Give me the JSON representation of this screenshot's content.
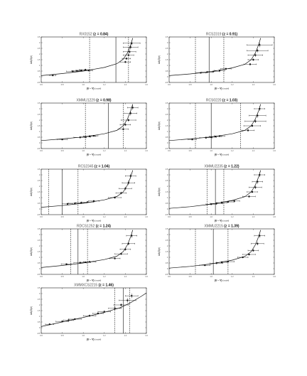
{
  "figure": {
    "ylabel": "ΔA(Gyr)",
    "xlabel_main": "(U − V)",
    "xlabel_sub": "(model)",
    "xticks": [
      "0.6",
      "0.8",
      "1.0",
      "1.2",
      "1.4",
      "1.6"
    ],
    "xlim": [
      0.6,
      1.6
    ]
  },
  "chart_data": [
    {
      "type": "scatter",
      "name": "RX0152",
      "z_label": "(z = 0.84)",
      "xlim": [
        0.6,
        1.6
      ],
      "ylim": [
        -0.5,
        3.5
      ],
      "yticks": [
        -0.5,
        0,
        0.5,
        1,
        1.5,
        2,
        2.5,
        3,
        3.5
      ],
      "vlines": {
        "solid": 1.31,
        "dashed": [
          1.06,
          1.43
        ]
      },
      "points": [
        {
          "x": 0.71,
          "y": 0.12,
          "ex": 0.03,
          "ey": 0.04
        },
        {
          "x": 0.9,
          "y": 0.48,
          "ex": 0.06,
          "ey": 0.06
        },
        {
          "x": 0.94,
          "y": 0.52,
          "ex": 0.05,
          "ey": 0.05
        },
        {
          "x": 0.98,
          "y": 0.56,
          "ex": 0.05,
          "ey": 0.06
        },
        {
          "x": 1.02,
          "y": 0.62,
          "ex": 0.06,
          "ey": 0.08
        },
        {
          "x": 1.05,
          "y": 0.55,
          "ex": 0.04,
          "ey": 0.05
        },
        {
          "x": 1.4,
          "y": 1.3,
          "ex": 0.05,
          "ey": 0.1
        },
        {
          "x": 1.41,
          "y": 1.6,
          "ex": 0.04,
          "ey": 0.1
        },
        {
          "x": 1.43,
          "y": 1.9,
          "ex": 0.05,
          "ey": 0.1
        },
        {
          "x": 1.44,
          "y": 2.2,
          "ex": 0.06,
          "ey": 0.15
        },
        {
          "x": 1.45,
          "y": 2.6,
          "ex": 0.07,
          "ey": 0.2
        },
        {
          "x": 1.46,
          "y": 2.95,
          "ex": 0.08,
          "ey": 0.2
        }
      ],
      "curve": [
        [
          0.6,
          0.1
        ],
        [
          0.8,
          0.28
        ],
        [
          1.0,
          0.5
        ],
        [
          1.2,
          0.82
        ],
        [
          1.32,
          1.15
        ],
        [
          1.38,
          1.55
        ],
        [
          1.42,
          2.1
        ],
        [
          1.45,
          2.8
        ],
        [
          1.47,
          3.4
        ]
      ]
    },
    {
      "type": "scatter",
      "name": "RCS2319",
      "z_label": "(z = 0.91)",
      "xlim": [
        0.6,
        1.6
      ],
      "ylim": [
        -0.5,
        3.5
      ],
      "yticks": [
        -0.5,
        0,
        0.5,
        1,
        1.5,
        2,
        2.5,
        3,
        3.5
      ],
      "vlines": {
        "solid": 0.98,
        "dashed": [
          0.85,
          1.12
        ]
      },
      "points": [
        {
          "x": 0.9,
          "y": 0.35,
          "ex": 0.05,
          "ey": 0.05
        },
        {
          "x": 0.96,
          "y": 0.4,
          "ex": 0.05,
          "ey": 0.06
        },
        {
          "x": 1.02,
          "y": 0.46,
          "ex": 0.06,
          "ey": 0.07
        },
        {
          "x": 1.08,
          "y": 0.55,
          "ex": 0.05,
          "ey": 0.06
        },
        {
          "x": 1.14,
          "y": 0.7,
          "ex": 0.05,
          "ey": 0.08
        },
        {
          "x": 1.37,
          "y": 1.1,
          "ex": 0.06,
          "ey": 0.1
        },
        {
          "x": 1.4,
          "y": 1.5,
          "ex": 0.05,
          "ey": 0.12
        },
        {
          "x": 1.42,
          "y": 1.9,
          "ex": 0.07,
          "ey": 0.15
        },
        {
          "x": 1.44,
          "y": 2.3,
          "ex": 0.1,
          "ey": 0.15
        },
        {
          "x": 1.46,
          "y": 2.8,
          "ex": 0.12,
          "ey": 0.2
        }
      ],
      "curve": [
        [
          0.6,
          0.1
        ],
        [
          0.8,
          0.25
        ],
        [
          1.0,
          0.45
        ],
        [
          1.2,
          0.78
        ],
        [
          1.32,
          1.1
        ],
        [
          1.38,
          1.5
        ],
        [
          1.42,
          2.1
        ],
        [
          1.45,
          2.8
        ],
        [
          1.47,
          3.4
        ]
      ]
    },
    {
      "type": "scatter",
      "name": "XMMU1229",
      "z_label": "(z = 0.98)",
      "xlim": [
        0.6,
        1.6
      ],
      "ylim": [
        -0.5,
        3.5
      ],
      "yticks": [
        -0.5,
        0,
        0.5,
        1,
        1.5,
        2,
        2.5,
        3,
        3.5
      ],
      "vlines": {
        "solid": 1.24,
        "dashed": [
          1.02,
          1.38
        ]
      },
      "points": [
        {
          "x": 0.8,
          "y": 0.3,
          "ex": 0.05,
          "ey": 0.05
        },
        {
          "x": 0.97,
          "y": 0.48,
          "ex": 0.06,
          "ey": 0.06
        },
        {
          "x": 1.02,
          "y": 0.52,
          "ex": 0.05,
          "ey": 0.06
        },
        {
          "x": 1.06,
          "y": 0.58,
          "ex": 0.06,
          "ey": 0.07
        },
        {
          "x": 1.1,
          "y": 0.62,
          "ex": 0.04,
          "ey": 0.05
        },
        {
          "x": 1.38,
          "y": 1.2,
          "ex": 0.05,
          "ey": 0.1
        },
        {
          "x": 1.4,
          "y": 1.6,
          "ex": 0.05,
          "ey": 0.12
        },
        {
          "x": 1.43,
          "y": 2.0,
          "ex": 0.07,
          "ey": 0.15
        },
        {
          "x": 1.45,
          "y": 2.6,
          "ex": 0.06,
          "ey": 0.2
        },
        {
          "x": 1.47,
          "y": 3.1,
          "ex": 0.05,
          "ey": 0.2
        }
      ],
      "curve": [
        [
          0.6,
          0.2
        ],
        [
          0.8,
          0.35
        ],
        [
          1.0,
          0.52
        ],
        [
          1.2,
          0.8
        ],
        [
          1.32,
          1.1
        ],
        [
          1.38,
          1.5
        ],
        [
          1.42,
          2.1
        ],
        [
          1.45,
          2.8
        ],
        [
          1.47,
          3.4
        ]
      ]
    },
    {
      "type": "scatter",
      "name": "RCS0220",
      "z_label": "(z = 1.03)",
      "xlim": [
        0.6,
        1.6
      ],
      "ylim": [
        -0.5,
        3.5
      ],
      "yticks": [
        -0.5,
        0,
        0.5,
        1,
        1.5,
        2,
        2.5,
        3,
        3.5
      ],
      "vlines": {
        "solid": 1.0,
        "dashed": [
          0.85,
          1.28
        ]
      },
      "points": [
        {
          "x": 0.82,
          "y": 0.3,
          "ex": 0.04,
          "ey": 0.05
        },
        {
          "x": 0.95,
          "y": 0.45,
          "ex": 0.06,
          "ey": 0.06
        },
        {
          "x": 1.0,
          "y": 0.5,
          "ex": 0.05,
          "ey": 0.06
        },
        {
          "x": 1.04,
          "y": 0.56,
          "ex": 0.06,
          "ey": 0.07
        },
        {
          "x": 1.08,
          "y": 0.6,
          "ex": 0.05,
          "ey": 0.06
        },
        {
          "x": 1.35,
          "y": 1.1,
          "ex": 0.06,
          "ey": 0.1
        },
        {
          "x": 1.39,
          "y": 1.5,
          "ex": 0.08,
          "ey": 0.12
        },
        {
          "x": 1.42,
          "y": 1.9,
          "ex": 0.1,
          "ey": 0.15
        },
        {
          "x": 1.44,
          "y": 2.4,
          "ex": 0.08,
          "ey": 0.2
        },
        {
          "x": 1.46,
          "y": 3.0,
          "ex": 0.05,
          "ey": 0.2
        }
      ],
      "curve": [
        [
          0.6,
          0.2
        ],
        [
          0.8,
          0.35
        ],
        [
          1.0,
          0.52
        ],
        [
          1.2,
          0.8
        ],
        [
          1.32,
          1.1
        ],
        [
          1.38,
          1.5
        ],
        [
          1.42,
          2.1
        ],
        [
          1.45,
          2.8
        ],
        [
          1.47,
          3.4
        ]
      ]
    },
    {
      "type": "scatter",
      "name": "RCS2345",
      "z_label": "(z = 1.04)",
      "xlim": [
        0.6,
        1.6
      ],
      "ylim": [
        -0.5,
        3.5
      ],
      "yticks": [
        -0.5,
        0,
        0.5,
        1,
        1.5,
        2,
        2.5,
        3,
        3.5
      ],
      "vlines": {
        "solid": 0.8,
        "dashed": [
          0.67,
          0.95
        ]
      },
      "points": [
        {
          "x": 0.85,
          "y": 0.45,
          "ex": 0.05,
          "ey": 0.06
        },
        {
          "x": 0.92,
          "y": 0.5,
          "ex": 0.06,
          "ey": 0.06
        },
        {
          "x": 0.98,
          "y": 0.55,
          "ex": 0.05,
          "ey": 0.06
        },
        {
          "x": 1.04,
          "y": 0.6,
          "ex": 0.06,
          "ey": 0.07
        },
        {
          "x": 1.1,
          "y": 0.7,
          "ex": 0.05,
          "ey": 0.06
        },
        {
          "x": 1.3,
          "y": 1.0,
          "ex": 0.06,
          "ey": 0.1
        },
        {
          "x": 1.36,
          "y": 1.4,
          "ex": 0.05,
          "ey": 0.12
        },
        {
          "x": 1.4,
          "y": 1.8,
          "ex": 0.06,
          "ey": 0.15
        },
        {
          "x": 1.43,
          "y": 2.3,
          "ex": 0.06,
          "ey": 0.2
        },
        {
          "x": 1.45,
          "y": 2.9,
          "ex": 0.05,
          "ey": 0.2
        }
      ],
      "curve": [
        [
          0.6,
          0.15
        ],
        [
          0.8,
          0.3
        ],
        [
          1.0,
          0.5
        ],
        [
          1.2,
          0.8
        ],
        [
          1.32,
          1.1
        ],
        [
          1.38,
          1.5
        ],
        [
          1.42,
          2.1
        ],
        [
          1.45,
          2.8
        ],
        [
          1.47,
          3.4
        ]
      ]
    },
    {
      "type": "scatter",
      "name": "XMMU2235",
      "z_label": "(z = 1.22)",
      "xlim": [
        0.6,
        1.6
      ],
      "ylim": [
        -0.5,
        3.5
      ],
      "yticks": [
        -0.5,
        0,
        0.5,
        1,
        1.5,
        2,
        2.5,
        3,
        3.5
      ],
      "vlines": {
        "solid": 1.04,
        "dashed": [
          0.96,
          1.12
        ]
      },
      "points": [
        {
          "x": 1.0,
          "y": 0.42,
          "ex": 0.05,
          "ey": 0.06
        },
        {
          "x": 1.05,
          "y": 0.48,
          "ex": 0.06,
          "ey": 0.06
        },
        {
          "x": 1.1,
          "y": 0.55,
          "ex": 0.05,
          "ey": 0.06
        },
        {
          "x": 1.16,
          "y": 0.62,
          "ex": 0.06,
          "ey": 0.07
        },
        {
          "x": 1.22,
          "y": 0.7,
          "ex": 0.05,
          "ey": 0.06
        },
        {
          "x": 1.36,
          "y": 1.1,
          "ex": 0.06,
          "ey": 0.1
        },
        {
          "x": 1.39,
          "y": 1.5,
          "ex": 0.05,
          "ey": 0.12
        },
        {
          "x": 1.42,
          "y": 1.9,
          "ex": 0.06,
          "ey": 0.15
        },
        {
          "x": 1.44,
          "y": 2.4,
          "ex": 0.05,
          "ey": 0.2
        },
        {
          "x": 1.46,
          "y": 3.0,
          "ex": 0.05,
          "ey": 0.2
        }
      ],
      "curve": [
        [
          0.6,
          0.05
        ],
        [
          0.8,
          0.2
        ],
        [
          1.0,
          0.42
        ],
        [
          1.2,
          0.75
        ],
        [
          1.32,
          1.08
        ],
        [
          1.38,
          1.5
        ],
        [
          1.42,
          2.1
        ],
        [
          1.45,
          2.8
        ],
        [
          1.47,
          3.4
        ]
      ]
    },
    {
      "type": "scatter",
      "name": "RDCS1252",
      "z_label": "(z = 1.24)",
      "xlim": [
        0.6,
        1.6
      ],
      "ylim": [
        -0.5,
        3.5
      ],
      "yticks": [
        -0.5,
        0,
        0.5,
        1,
        1.5,
        2,
        2.5,
        3,
        3.5
      ],
      "vlines": {
        "solid": 0.95,
        "dashed": [
          0.88,
          1.04
        ]
      },
      "points": [
        {
          "x": 0.84,
          "y": 0.4,
          "ex": 0.05,
          "ey": 0.05
        },
        {
          "x": 0.97,
          "y": 0.52,
          "ex": 0.06,
          "ey": 0.06
        },
        {
          "x": 1.02,
          "y": 0.56,
          "ex": 0.05,
          "ey": 0.06
        },
        {
          "x": 1.06,
          "y": 0.6,
          "ex": 0.06,
          "ey": 0.07
        },
        {
          "x": 1.3,
          "y": 0.9,
          "ex": 0.05,
          "ey": 0.08
        },
        {
          "x": 1.36,
          "y": 1.3,
          "ex": 0.06,
          "ey": 0.1
        },
        {
          "x": 1.4,
          "y": 1.7,
          "ex": 0.05,
          "ey": 0.12
        },
        {
          "x": 1.43,
          "y": 2.2,
          "ex": 0.06,
          "ey": 0.15
        },
        {
          "x": 1.46,
          "y": 2.9,
          "ex": 0.05,
          "ey": 0.2
        }
      ],
      "curve": [
        [
          0.6,
          0.1
        ],
        [
          0.8,
          0.28
        ],
        [
          1.0,
          0.5
        ],
        [
          1.2,
          0.8
        ],
        [
          1.32,
          1.1
        ],
        [
          1.38,
          1.5
        ],
        [
          1.42,
          2.1
        ],
        [
          1.45,
          2.8
        ],
        [
          1.47,
          3.4
        ]
      ]
    },
    {
      "type": "scatter",
      "name": "XMMU2215",
      "z_label": "(z = 1.39)",
      "xlim": [
        0.6,
        1.6
      ],
      "ylim": [
        -0.5,
        3.5
      ],
      "yticks": [
        -0.5,
        0,
        0.5,
        1,
        1.5,
        2,
        2.5,
        3,
        3.5
      ],
      "vlines": {
        "solid": 1.02,
        "dashed": [
          0.85,
          1.16
        ]
      },
      "points": [
        {
          "x": 0.94,
          "y": 0.3,
          "ex": 0.05,
          "ey": 0.05
        },
        {
          "x": 1.05,
          "y": 0.48,
          "ex": 0.06,
          "ey": 0.06
        },
        {
          "x": 1.1,
          "y": 0.55,
          "ex": 0.05,
          "ey": 0.06
        },
        {
          "x": 1.16,
          "y": 0.62,
          "ex": 0.06,
          "ey": 0.07
        },
        {
          "x": 1.3,
          "y": 1.0,
          "ex": 0.05,
          "ey": 0.08
        },
        {
          "x": 1.36,
          "y": 1.25,
          "ex": 0.06,
          "ey": 0.1
        },
        {
          "x": 1.4,
          "y": 1.6,
          "ex": 0.05,
          "ey": 0.12
        },
        {
          "x": 1.44,
          "y": 2.2,
          "ex": 0.06,
          "ey": 0.15
        },
        {
          "x": 1.46,
          "y": 2.9,
          "ex": 0.05,
          "ey": 0.2
        }
      ],
      "curve": [
        [
          0.6,
          0.05
        ],
        [
          0.8,
          0.2
        ],
        [
          1.0,
          0.42
        ],
        [
          1.2,
          0.75
        ],
        [
          1.32,
          1.08
        ],
        [
          1.38,
          1.5
        ],
        [
          1.42,
          2.1
        ],
        [
          1.45,
          2.8
        ],
        [
          1.47,
          3.4
        ]
      ]
    },
    {
      "type": "scatter",
      "name": "XMMXCS2215",
      "z_label": "(z = 1.46)",
      "xlim": [
        0.6,
        1.6
      ],
      "ylim": [
        -0.5,
        3.5
      ],
      "yticks": [
        -0.5,
        0,
        0.5,
        1,
        1.5,
        2,
        2.5,
        3,
        3.5
      ],
      "vlines": {
        "solid": 1.38,
        "dashed": [
          1.3,
          1.44
        ]
      },
      "points": [
        {
          "x": 0.68,
          "y": 0.3,
          "ex": 0.04,
          "ey": 0.05
        },
        {
          "x": 0.8,
          "y": 0.55,
          "ex": 0.06,
          "ey": 0.07
        },
        {
          "x": 0.86,
          "y": 0.65,
          "ex": 0.05,
          "ey": 0.06
        },
        {
          "x": 0.92,
          "y": 0.75,
          "ex": 0.06,
          "ey": 0.08
        },
        {
          "x": 1.06,
          "y": 1.05,
          "ex": 0.06,
          "ey": 0.1
        },
        {
          "x": 1.14,
          "y": 1.25,
          "ex": 0.05,
          "ey": 0.1
        },
        {
          "x": 1.2,
          "y": 1.4,
          "ex": 0.06,
          "ey": 0.12
        },
        {
          "x": 1.3,
          "y": 1.7,
          "ex": 0.06,
          "ey": 0.15
        },
        {
          "x": 1.36,
          "y": 2.0,
          "ex": 0.07,
          "ey": 0.15
        },
        {
          "x": 1.42,
          "y": 2.4,
          "ex": 0.08,
          "ey": 0.2
        },
        {
          "x": 1.46,
          "y": 2.8,
          "ex": 0.06,
          "ey": 0.2
        }
      ],
      "curve": [
        [
          0.6,
          0.1
        ],
        [
          0.8,
          0.5
        ],
        [
          1.0,
          0.9
        ],
        [
          1.2,
          1.35
        ],
        [
          1.35,
          1.75
        ],
        [
          1.45,
          2.2
        ],
        [
          1.55,
          2.75
        ],
        [
          1.6,
          3.05
        ]
      ]
    }
  ]
}
